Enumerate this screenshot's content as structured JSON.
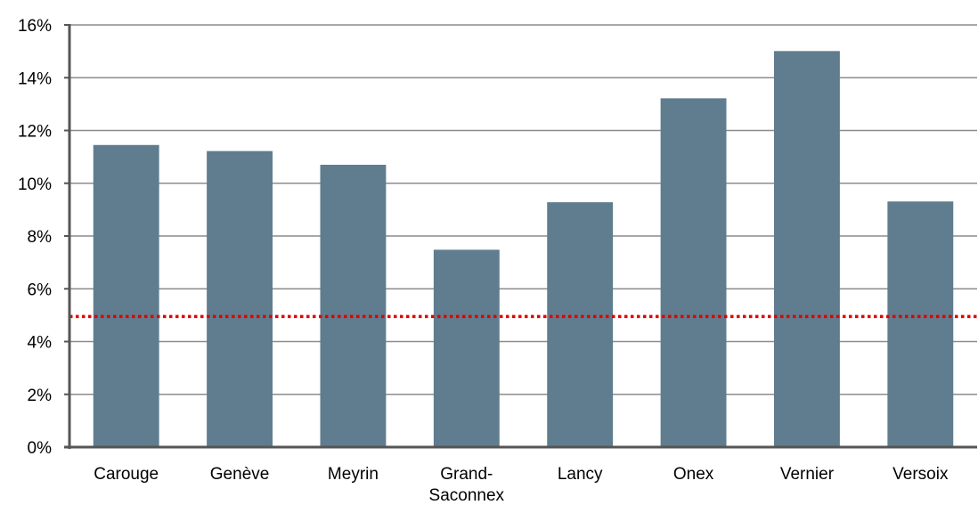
{
  "chart_data": {
    "type": "bar",
    "categories": [
      "Carouge",
      "Genève",
      "Meyrin",
      "Grand-\nSaconnex",
      "Lancy",
      "Onex",
      "Vernier",
      "Versoix"
    ],
    "values": [
      11.45,
      11.22,
      10.7,
      7.48,
      9.28,
      13.22,
      15.01,
      9.31
    ],
    "ylim": [
      0,
      16
    ],
    "yticks": [
      0,
      2,
      4,
      6,
      8,
      10,
      12,
      14,
      16
    ],
    "ytick_suffix": "%",
    "title": "",
    "xlabel": "",
    "ylabel": "",
    "grid": true,
    "reference_line": {
      "value": 4.95,
      "style": "dotted"
    },
    "colors": {
      "bar": "#5f7d8e",
      "reference_line": "#e00000",
      "grid": "#8c8c8c",
      "axis": "#555555"
    }
  }
}
